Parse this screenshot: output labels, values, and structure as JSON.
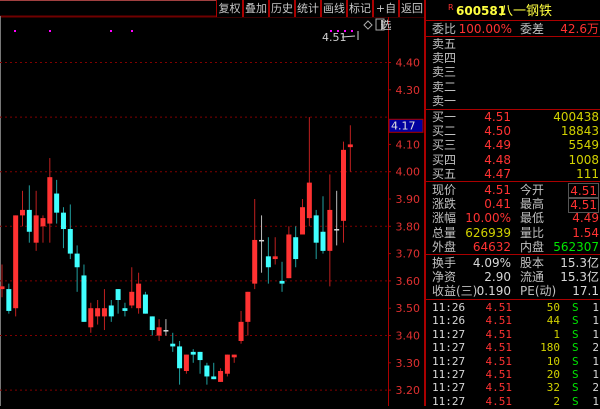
{
  "toolbar": {
    "buttons": [
      "复权",
      "叠加",
      "历史",
      "统计",
      "画线",
      "标记",
      "+自选",
      "返回"
    ]
  },
  "chart": {
    "type": "candlestick",
    "y_ticks": [
      "4.40",
      "4.30",
      "4.10",
      "4.00",
      "3.90",
      "3.80",
      "3.70",
      "3.60",
      "3.50",
      "3.40",
      "3.30",
      "3.20"
    ],
    "current_price_marker": "4.17",
    "last_price_label": "4.51",
    "up_color": "#ff3232",
    "down_color": "#40ffff",
    "flat_color": "#d8d8d8",
    "grid_color": "#800000",
    "chart_data": {
      "type": "candlestick",
      "columns": [
        "open",
        "high",
        "low",
        "close"
      ],
      "ylim": [
        3.15,
        4.55
      ],
      "candles": [
        [
          3.57,
          3.66,
          3.54,
          3.58
        ],
        [
          3.57,
          3.59,
          3.48,
          3.49
        ],
        [
          3.5,
          3.84,
          3.47,
          3.84
        ],
        [
          3.84,
          3.93,
          3.8,
          3.86
        ],
        [
          3.86,
          3.95,
          3.74,
          3.78
        ],
        [
          3.74,
          3.93,
          3.71,
          3.84
        ],
        [
          3.8,
          3.84,
          3.74,
          3.83
        ],
        [
          3.81,
          4.05,
          3.74,
          3.98
        ],
        [
          3.92,
          3.97,
          3.81,
          3.85
        ],
        [
          3.85,
          3.87,
          3.72,
          3.79
        ],
        [
          3.79,
          3.88,
          3.68,
          3.7
        ],
        [
          3.7,
          3.73,
          3.56,
          3.65
        ],
        [
          3.62,
          3.66,
          3.45,
          3.45
        ],
        [
          3.43,
          3.52,
          3.41,
          3.5
        ],
        [
          3.47,
          3.53,
          3.44,
          3.5
        ],
        [
          3.47,
          3.57,
          3.42,
          3.5
        ],
        [
          3.51,
          3.53,
          3.45,
          3.47
        ],
        [
          3.57,
          3.57,
          3.48,
          3.53
        ],
        [
          3.5,
          3.52,
          3.47,
          3.49
        ],
        [
          3.51,
          3.65,
          3.5,
          3.56
        ],
        [
          3.5,
          3.63,
          3.48,
          3.59
        ],
        [
          3.55,
          3.56,
          3.48,
          3.48
        ],
        [
          3.47,
          3.47,
          3.4,
          3.42
        ],
        [
          3.4,
          3.46,
          3.38,
          3.43
        ],
        [
          3.42,
          3.46,
          3.4,
          3.42
        ],
        [
          3.37,
          3.41,
          3.34,
          3.36
        ],
        [
          3.36,
          3.38,
          3.22,
          3.28
        ],
        [
          3.27,
          3.33,
          3.26,
          3.33
        ],
        [
          3.34,
          3.35,
          3.3,
          3.33
        ],
        [
          3.34,
          3.34,
          3.26,
          3.31
        ],
        [
          3.29,
          3.3,
          3.22,
          3.25
        ],
        [
          3.25,
          3.3,
          3.24,
          3.24
        ],
        [
          3.23,
          3.28,
          3.23,
          3.27
        ],
        [
          3.26,
          3.33,
          3.25,
          3.33
        ],
        [
          3.32,
          3.33,
          3.3,
          3.33
        ],
        [
          3.38,
          3.49,
          3.37,
          3.45
        ],
        [
          3.45,
          3.56,
          3.4,
          3.56
        ],
        [
          3.59,
          3.9,
          3.57,
          3.75
        ],
        [
          3.75,
          3.84,
          3.63,
          3.75
        ],
        [
          3.69,
          3.76,
          3.59,
          3.65
        ],
        [
          3.68,
          3.76,
          3.66,
          3.69
        ],
        [
          3.6,
          3.67,
          3.56,
          3.59
        ],
        [
          3.61,
          3.8,
          3.61,
          3.77
        ],
        [
          3.76,
          3.8,
          3.65,
          3.68
        ],
        [
          3.77,
          3.9,
          3.77,
          3.87
        ],
        [
          3.83,
          4.2,
          3.8,
          3.96
        ],
        [
          3.84,
          3.86,
          3.68,
          3.74
        ],
        [
          3.78,
          3.91,
          3.7,
          3.71
        ],
        [
          3.71,
          3.99,
          3.58,
          3.86
        ],
        [
          3.79,
          3.93,
          3.73,
          3.79
        ],
        [
          3.82,
          4.11,
          3.74,
          4.08
        ],
        [
          4.09,
          4.17,
          4.0,
          4.1
        ]
      ]
    }
  },
  "quote": {
    "badge": "R",
    "code": "600581",
    "name": "八一钢铁",
    "weibi_label": "委比",
    "weibi": "100.00%",
    "weicha_label": "委差",
    "weicha": "42.6万",
    "asks": [
      {
        "label": "卖五"
      },
      {
        "label": "卖四"
      },
      {
        "label": "卖三"
      },
      {
        "label": "卖二"
      },
      {
        "label": "卖一"
      }
    ],
    "bids": [
      {
        "label": "买一",
        "price": "4.51",
        "vol": "400438"
      },
      {
        "label": "买二",
        "price": "4.50",
        "vol": "18843"
      },
      {
        "label": "买三",
        "price": "4.49",
        "vol": "5549"
      },
      {
        "label": "买四",
        "price": "4.48",
        "vol": "1008"
      },
      {
        "label": "买五",
        "price": "4.47",
        "vol": "111"
      }
    ],
    "stats": [
      {
        "l1": "现价",
        "v1": "4.51",
        "l2": "今开",
        "v2": "4.51"
      },
      {
        "l1": "涨跌",
        "v1": "0.41",
        "l2": "最高",
        "v2": "4.51"
      },
      {
        "l1": "涨幅",
        "v1": "10.00%",
        "l2": "最低",
        "v2": "4.49"
      },
      {
        "l1": "总量",
        "v1": "626939",
        "l2": "量比",
        "v2": "1.54"
      },
      {
        "l1": "外盘",
        "v1": "64632",
        "l2": "内盘",
        "v2": "562307"
      }
    ],
    "fund": [
      {
        "l1": "换手",
        "v1": "4.09%",
        "l2": "股本",
        "v2": "15.3亿"
      },
      {
        "l1": "净资",
        "v1": "2.90",
        "l2": "流通",
        "v2": "15.3亿"
      },
      {
        "l1": "收益(三)",
        "v1": "0.190",
        "l2": "PE(动)",
        "v2": "17.1"
      }
    ],
    "ticks": [
      {
        "time": "11:26",
        "price": "4.51",
        "vol": "50",
        "side": "S",
        "n": "1"
      },
      {
        "time": "11:26",
        "price": "4.51",
        "vol": "44",
        "side": "S",
        "n": "1"
      },
      {
        "time": "11:27",
        "price": "4.51",
        "vol": "1",
        "side": "S",
        "n": "1"
      },
      {
        "time": "11:27",
        "price": "4.51",
        "vol": "180",
        "side": "S",
        "n": "2"
      },
      {
        "time": "11:27",
        "price": "4.51",
        "vol": "10",
        "side": "S",
        "n": "1"
      },
      {
        "time": "11:27",
        "price": "4.51",
        "vol": "20",
        "side": "S",
        "n": "1"
      },
      {
        "time": "11:27",
        "price": "4.51",
        "vol": "32",
        "side": "S",
        "n": "2"
      },
      {
        "time": "11:27",
        "price": "4.51",
        "vol": "2",
        "side": "S",
        "n": "1"
      }
    ]
  }
}
